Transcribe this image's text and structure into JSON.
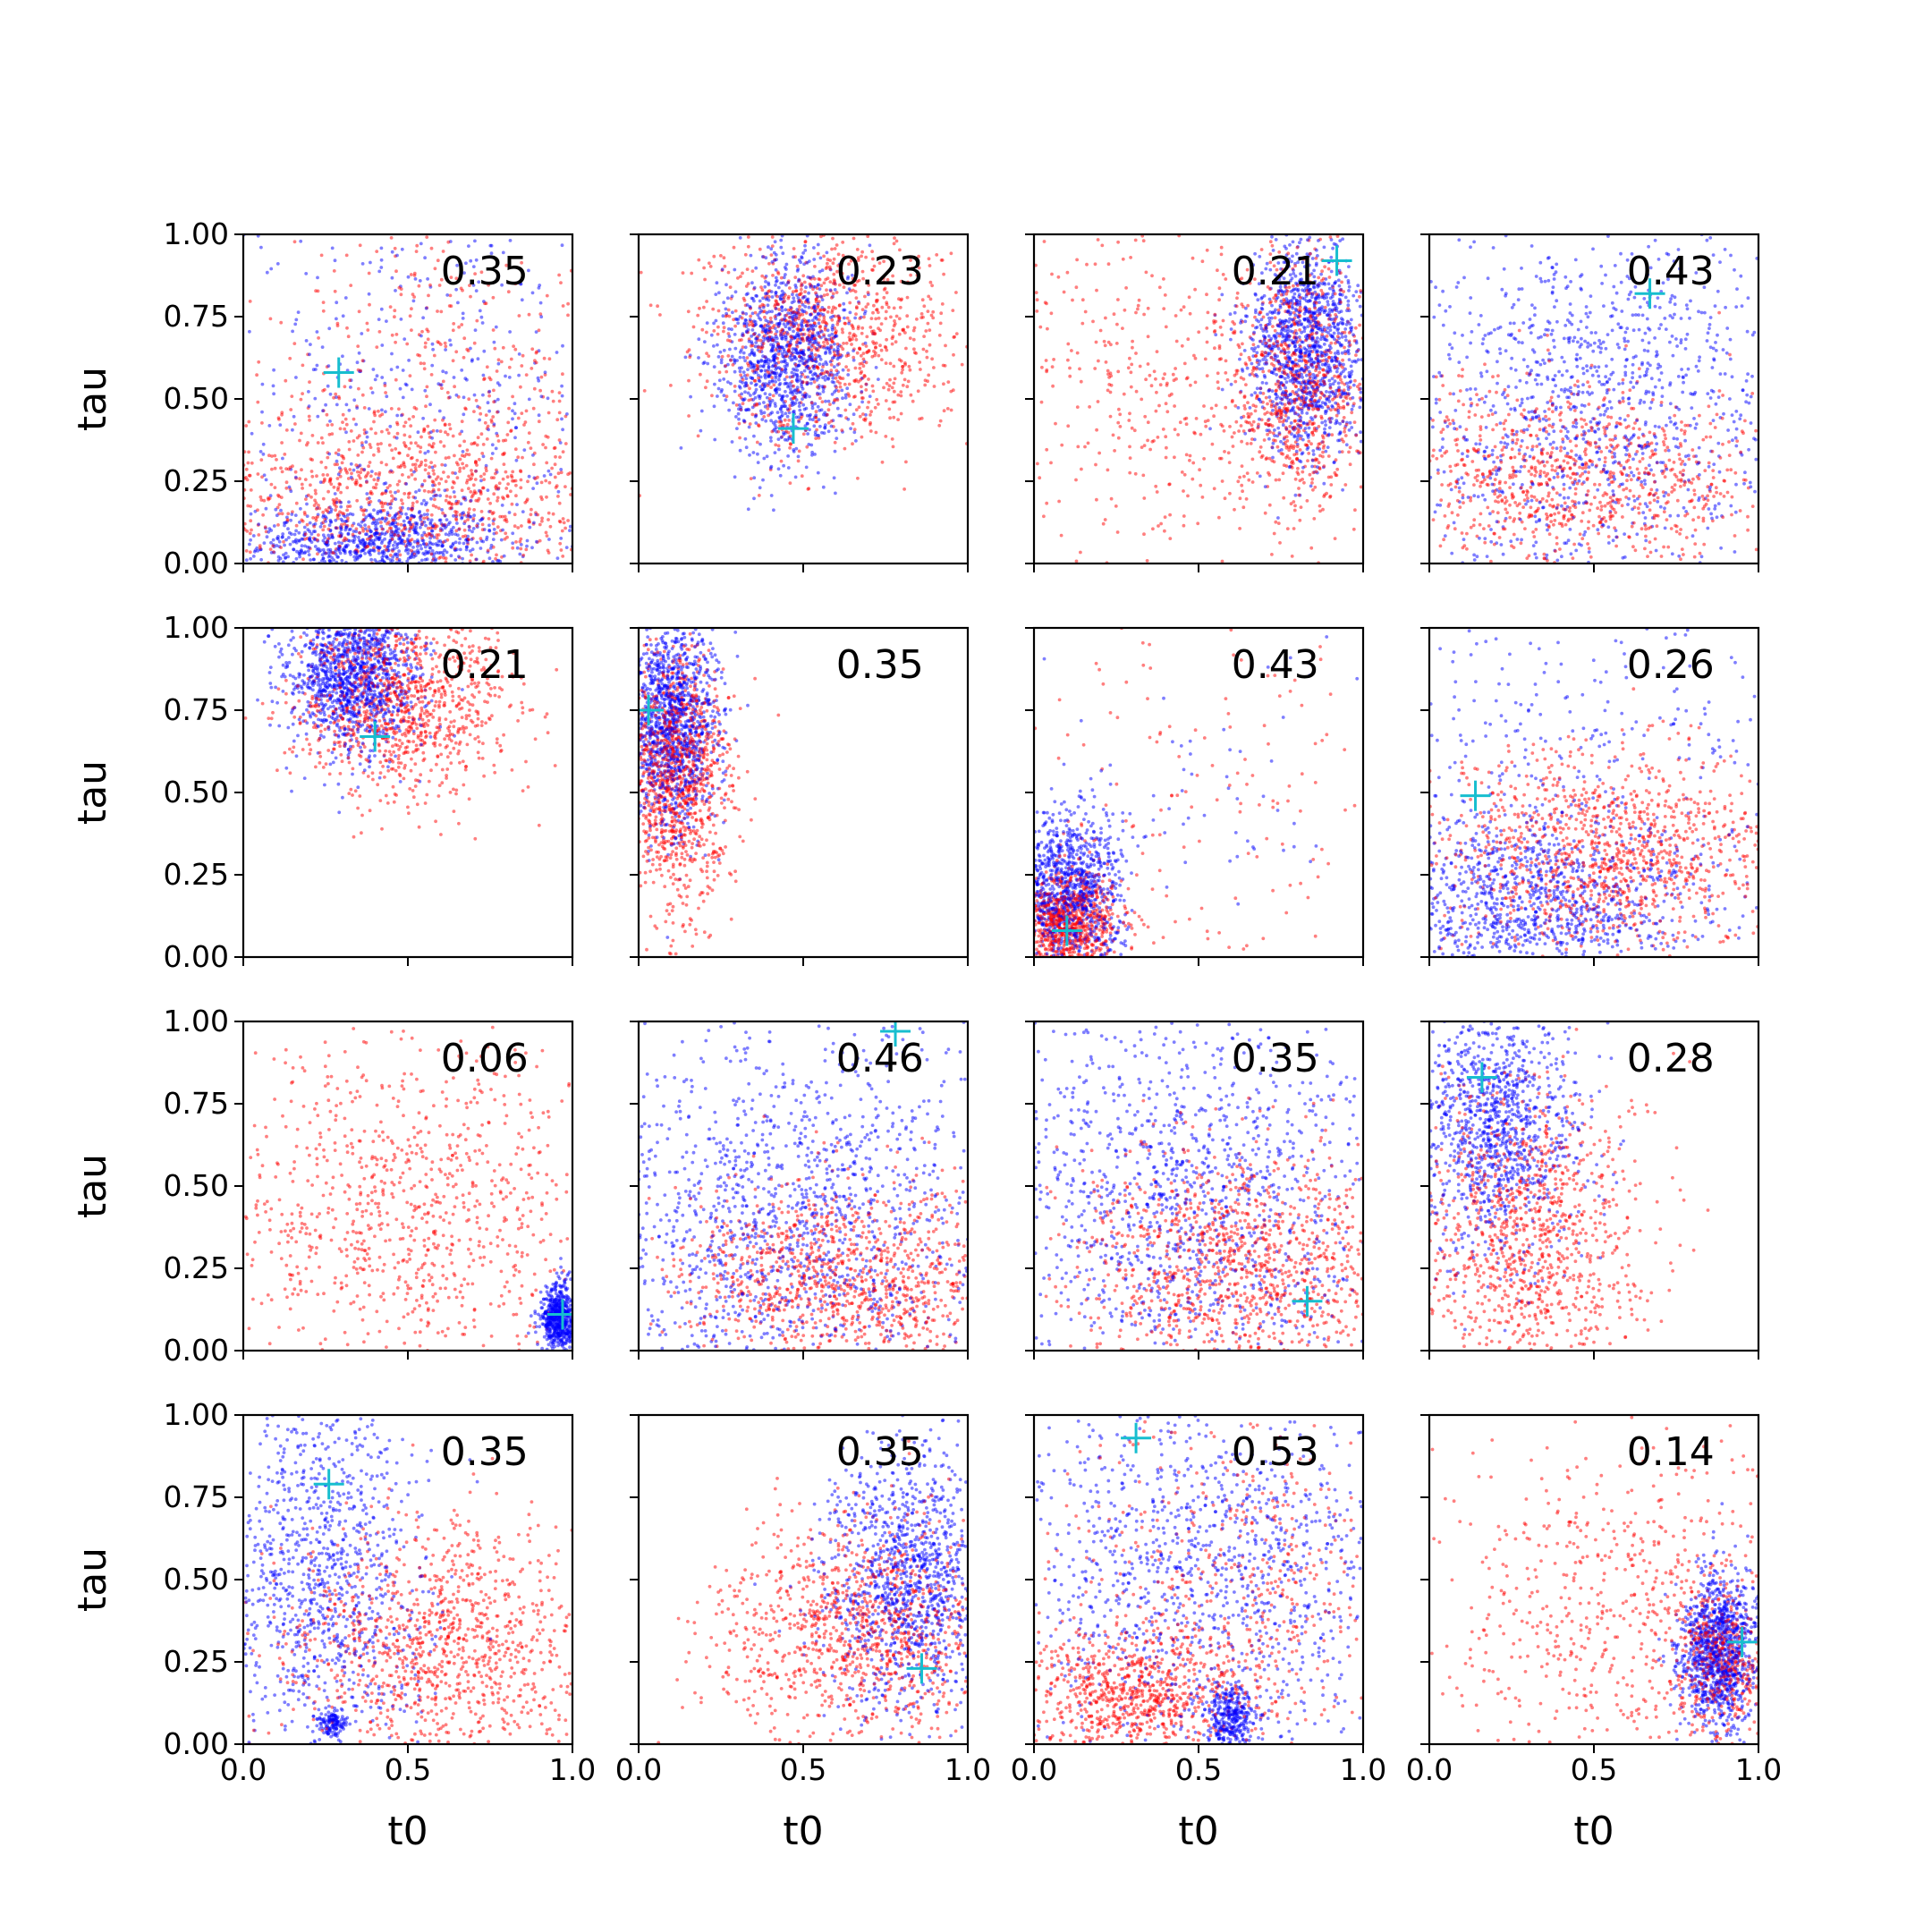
{
  "figure": {
    "colors": {
      "series_a": "#0000ff",
      "series_b": "#ff0000",
      "marker": "#17becf",
      "axis": "#000000",
      "background": "#ffffff"
    },
    "xlabel": "t0",
    "ylabel": "tau",
    "xticks": [
      "0.0",
      "0.5",
      "1.0"
    ],
    "yticks": [
      "0.00",
      "0.25",
      "0.50",
      "0.75",
      "1.00"
    ]
  },
  "chart_data": {
    "type": "scatter",
    "layout": "4x4 grid, shared axes",
    "xlim": [
      0,
      1
    ],
    "ylim": [
      0,
      1
    ],
    "grid": false,
    "panels": [
      {
        "annotation": "0.35",
        "marker": [
          0.29,
          0.58
        ],
        "blue": [
          {
            "cx": 0.4,
            "cy": 0.06,
            "sx": 0.2,
            "sy": 0.06,
            "n": 700
          },
          {
            "cx": 0.5,
            "cy": 0.5,
            "sx": 0.4,
            "sy": 0.35,
            "n": 380
          }
        ],
        "red": [
          {
            "cx": 0.5,
            "cy": 0.2,
            "sx": 0.4,
            "sy": 0.15,
            "n": 850
          },
          {
            "cx": 0.6,
            "cy": 0.65,
            "sx": 0.3,
            "sy": 0.25,
            "n": 260
          }
        ]
      },
      {
        "annotation": "0.23",
        "marker": [
          0.47,
          0.41
        ],
        "blue": [
          {
            "cx": 0.45,
            "cy": 0.63,
            "sx": 0.1,
            "sy": 0.15,
            "n": 1100
          }
        ],
        "red": [
          {
            "cx": 0.58,
            "cy": 0.68,
            "sx": 0.2,
            "sy": 0.17,
            "n": 950
          }
        ]
      },
      {
        "annotation": "0.21",
        "marker": [
          0.92,
          0.92
        ],
        "blue": [
          {
            "cx": 0.83,
            "cy": 0.66,
            "sx": 0.09,
            "sy": 0.16,
            "n": 1150
          }
        ],
        "red": [
          {
            "cx": 0.8,
            "cy": 0.55,
            "sx": 0.1,
            "sy": 0.2,
            "n": 700
          },
          {
            "cx": 0.35,
            "cy": 0.55,
            "sx": 0.3,
            "sy": 0.3,
            "n": 400
          }
        ]
      },
      {
        "annotation": "0.43",
        "marker": [
          0.67,
          0.82
        ],
        "blue": [
          {
            "cx": 0.48,
            "cy": 0.45,
            "sx": 0.3,
            "sy": 0.3,
            "n": 1000
          }
        ],
        "red": [
          {
            "cx": 0.4,
            "cy": 0.25,
            "sx": 0.35,
            "sy": 0.15,
            "n": 850
          }
        ]
      },
      {
        "annotation": "0.21",
        "marker": [
          0.4,
          0.67
        ],
        "blue": [
          {
            "cx": 0.33,
            "cy": 0.85,
            "sx": 0.1,
            "sy": 0.12,
            "n": 1100
          }
        ],
        "red": [
          {
            "cx": 0.48,
            "cy": 0.78,
            "sx": 0.17,
            "sy": 0.14,
            "n": 1000
          }
        ]
      },
      {
        "annotation": "0.35",
        "marker": [
          0.03,
          0.75
        ],
        "blue": [
          {
            "cx": 0.1,
            "cy": 0.72,
            "sx": 0.07,
            "sy": 0.16,
            "n": 1100
          }
        ],
        "red": [
          {
            "cx": 0.12,
            "cy": 0.55,
            "sx": 0.08,
            "sy": 0.2,
            "n": 1050
          }
        ]
      },
      {
        "annotation": "0.43",
        "marker": [
          0.1,
          0.08
        ],
        "blue": [
          {
            "cx": 0.1,
            "cy": 0.18,
            "sx": 0.08,
            "sy": 0.13,
            "n": 900
          },
          {
            "cx": 0.5,
            "cy": 0.5,
            "sx": 0.3,
            "sy": 0.3,
            "n": 60
          }
        ],
        "red": [
          {
            "cx": 0.1,
            "cy": 0.1,
            "sx": 0.08,
            "sy": 0.08,
            "n": 700
          },
          {
            "cx": 0.45,
            "cy": 0.45,
            "sx": 0.3,
            "sy": 0.3,
            "n": 130
          }
        ]
      },
      {
        "annotation": "0.26",
        "marker": [
          0.14,
          0.49
        ],
        "blue": [
          {
            "cx": 0.3,
            "cy": 0.15,
            "sx": 0.25,
            "sy": 0.14,
            "n": 850
          },
          {
            "cx": 0.4,
            "cy": 0.6,
            "sx": 0.35,
            "sy": 0.3,
            "n": 260
          }
        ],
        "red": [
          {
            "cx": 0.55,
            "cy": 0.32,
            "sx": 0.28,
            "sy": 0.15,
            "n": 1050
          }
        ]
      },
      {
        "annotation": "0.06",
        "marker": [
          0.97,
          0.11
        ],
        "blue": [
          {
            "cx": 0.96,
            "cy": 0.1,
            "sx": 0.025,
            "sy": 0.05,
            "n": 600
          }
        ],
        "red": [
          {
            "cx": 0.5,
            "cy": 0.4,
            "sx": 0.3,
            "sy": 0.25,
            "n": 800
          }
        ]
      },
      {
        "annotation": "0.46",
        "marker": [
          0.78,
          0.97
        ],
        "blue": [
          {
            "cx": 0.45,
            "cy": 0.4,
            "sx": 0.32,
            "sy": 0.3,
            "n": 1150
          }
        ],
        "red": [
          {
            "cx": 0.65,
            "cy": 0.22,
            "sx": 0.28,
            "sy": 0.15,
            "n": 950
          }
        ]
      },
      {
        "annotation": "0.35",
        "marker": [
          0.83,
          0.15
        ],
        "blue": [
          {
            "cx": 0.45,
            "cy": 0.45,
            "sx": 0.32,
            "sy": 0.32,
            "n": 1050
          }
        ],
        "red": [
          {
            "cx": 0.65,
            "cy": 0.25,
            "sx": 0.25,
            "sy": 0.18,
            "n": 1000
          }
        ]
      },
      {
        "annotation": "0.28",
        "marker": [
          0.16,
          0.83
        ],
        "blue": [
          {
            "cx": 0.2,
            "cy": 0.68,
            "sx": 0.13,
            "sy": 0.2,
            "n": 1000
          }
        ],
        "red": [
          {
            "cx": 0.3,
            "cy": 0.35,
            "sx": 0.17,
            "sy": 0.22,
            "n": 950
          }
        ]
      },
      {
        "annotation": "0.35",
        "marker": [
          0.26,
          0.79
        ],
        "blue": [
          {
            "cx": 0.25,
            "cy": 0.5,
            "sx": 0.15,
            "sy": 0.3,
            "n": 900
          },
          {
            "cx": 0.27,
            "cy": 0.06,
            "sx": 0.02,
            "sy": 0.02,
            "n": 120
          }
        ],
        "red": [
          {
            "cx": 0.6,
            "cy": 0.28,
            "sx": 0.25,
            "sy": 0.2,
            "n": 1000
          }
        ]
      },
      {
        "annotation": "0.35",
        "marker": [
          0.86,
          0.23
        ],
        "blue": [
          {
            "cx": 0.82,
            "cy": 0.5,
            "sx": 0.13,
            "sy": 0.2,
            "n": 1050
          }
        ],
        "red": [
          {
            "cx": 0.68,
            "cy": 0.35,
            "sx": 0.22,
            "sy": 0.18,
            "n": 1000
          }
        ]
      },
      {
        "annotation": "0.53",
        "marker": [
          0.31,
          0.93
        ],
        "blue": [
          {
            "cx": 0.5,
            "cy": 0.5,
            "sx": 0.32,
            "sy": 0.3,
            "n": 1000
          },
          {
            "cx": 0.6,
            "cy": 0.08,
            "sx": 0.04,
            "sy": 0.05,
            "n": 300
          }
        ],
        "red": [
          {
            "cx": 0.3,
            "cy": 0.15,
            "sx": 0.18,
            "sy": 0.09,
            "n": 700
          },
          {
            "cx": 0.6,
            "cy": 0.45,
            "sx": 0.28,
            "sy": 0.28,
            "n": 450
          }
        ]
      },
      {
        "annotation": "0.14",
        "marker": [
          0.95,
          0.31
        ],
        "blue": [
          {
            "cx": 0.88,
            "cy": 0.28,
            "sx": 0.06,
            "sy": 0.12,
            "n": 1050
          }
        ],
        "red": [
          {
            "cx": 0.6,
            "cy": 0.4,
            "sx": 0.3,
            "sy": 0.28,
            "n": 550
          },
          {
            "cx": 0.88,
            "cy": 0.25,
            "sx": 0.07,
            "sy": 0.1,
            "n": 400
          }
        ]
      }
    ]
  }
}
